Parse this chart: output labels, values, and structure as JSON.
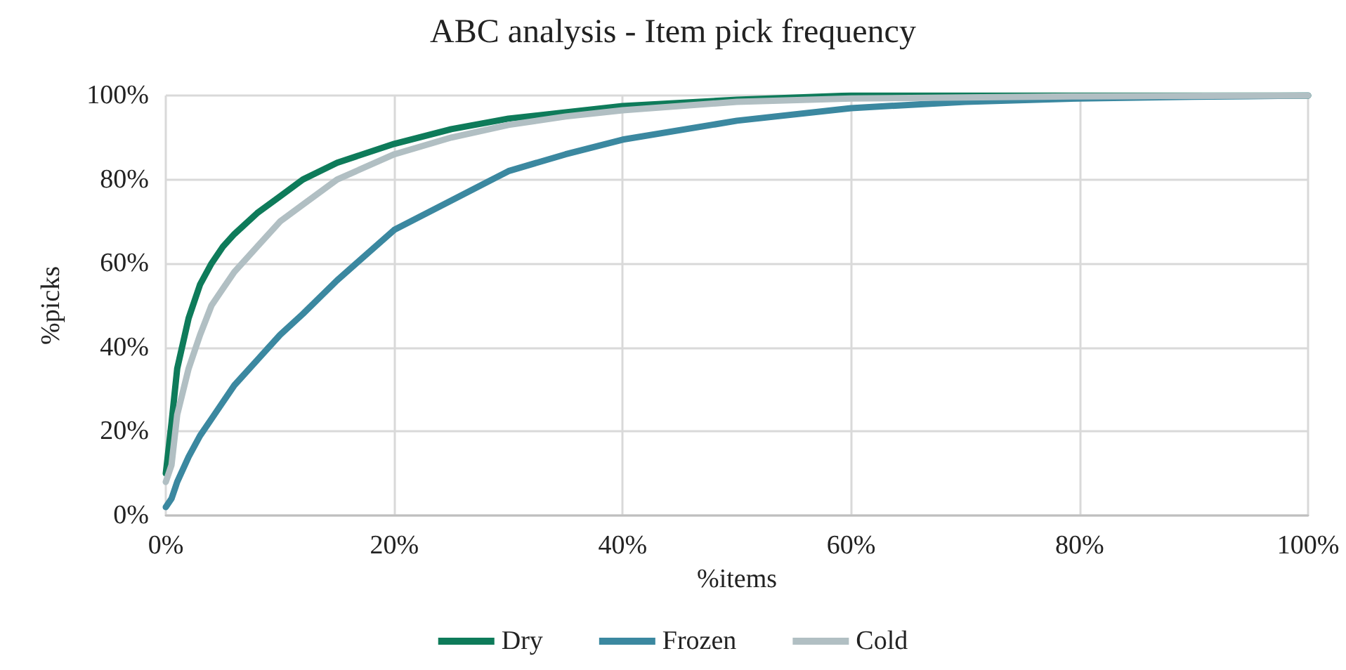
{
  "chart_data": {
    "type": "line",
    "title": "ABC analysis - Item pick frequency",
    "xlabel": "%items",
    "ylabel": "%picks",
    "xlim": [
      0,
      100
    ],
    "ylim": [
      0,
      100
    ],
    "xticks": [
      {
        "value": 0,
        "label": "0%"
      },
      {
        "value": 20,
        "label": "20%"
      },
      {
        "value": 40,
        "label": "40%"
      },
      {
        "value": 60,
        "label": "60%"
      },
      {
        "value": 80,
        "label": "80%"
      },
      {
        "value": 100,
        "label": "100%"
      }
    ],
    "yticks": [
      {
        "value": 0,
        "label": "0%"
      },
      {
        "value": 20,
        "label": "20%"
      },
      {
        "value": 40,
        "label": "40%"
      },
      {
        "value": 60,
        "label": "60%"
      },
      {
        "value": 80,
        "label": "80%"
      },
      {
        "value": 100,
        "label": "100%"
      }
    ],
    "grid": true,
    "legend": "bottom",
    "marker": "none",
    "line_style": "solid",
    "series": [
      {
        "name": "Dry",
        "color": "#0e7b5a",
        "x": [
          0,
          0.5,
          1,
          2,
          3,
          4,
          5,
          6,
          8,
          10,
          12,
          15,
          20,
          25,
          30,
          35,
          40,
          50,
          60,
          100
        ],
        "values": [
          10,
          22,
          35,
          47,
          55,
          60,
          64,
          67,
          72,
          76,
          80,
          84,
          88.5,
          92,
          94.5,
          96,
          97.5,
          99,
          100,
          100
        ]
      },
      {
        "name": "Frozen",
        "color": "#3b88a0",
        "x": [
          0,
          0.5,
          1,
          2,
          3,
          4,
          5,
          6,
          8,
          10,
          12,
          15,
          20,
          25,
          30,
          35,
          40,
          50,
          60,
          70,
          80,
          90,
          100
        ],
        "values": [
          2,
          4,
          8,
          14,
          19,
          23,
          27,
          31,
          37,
          43,
          48,
          56,
          68,
          75,
          82,
          86,
          89.5,
          94,
          97,
          98.5,
          99.3,
          99.7,
          100
        ]
      },
      {
        "name": "Cold",
        "color": "#b1bfc3",
        "x": [
          0,
          0.5,
          1,
          2,
          3,
          4,
          5,
          6,
          8,
          10,
          12,
          15,
          20,
          25,
          30,
          35,
          40,
          50,
          60,
          80,
          100
        ],
        "values": [
          8,
          12,
          24,
          35,
          43,
          50,
          54,
          58,
          64,
          70,
          74,
          80,
          86,
          90,
          93,
          95,
          96.5,
          98.5,
          99.3,
          99.8,
          100
        ]
      }
    ]
  }
}
